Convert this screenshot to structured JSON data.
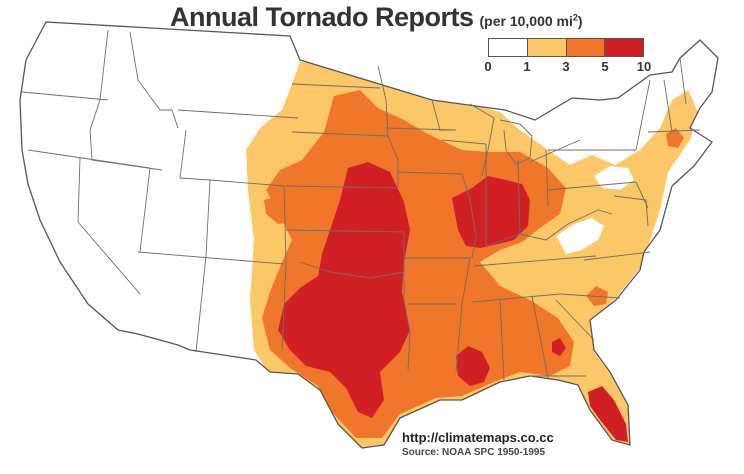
{
  "title": {
    "main": "Annual Tornado Reports",
    "sub_prefix": "(per 10,000 mi",
    "sub_sup": "2",
    "sub_suffix": ")"
  },
  "legend": {
    "classes": [
      {
        "min": "0",
        "max": "1",
        "color": "#ffffff"
      },
      {
        "min": "1",
        "max": "3",
        "color": "#fcc766"
      },
      {
        "min": "3",
        "max": "5",
        "color": "#f0772a"
      },
      {
        "min": "5",
        "max": "10",
        "color": "#d11f26"
      }
    ],
    "tick_labels": [
      "0",
      "1",
      "3",
      "5",
      "10"
    ]
  },
  "map": {
    "region": "United States (lower 48)",
    "ocean_color": "#ffffff",
    "land_base_color": "#ffffff",
    "border_color": "#666666"
  },
  "credit": {
    "url": "http://climatemaps.co.cc",
    "source": "Source: NOAA SPC 1950-1995"
  }
}
